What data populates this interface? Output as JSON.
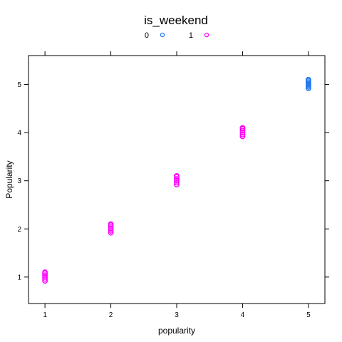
{
  "chart_data": {
    "type": "scatter",
    "xlabel": "popularity",
    "ylabel": "Popularity",
    "xlim": [
      0.75,
      5.25
    ],
    "ylim": [
      0.45,
      5.6
    ],
    "x_ticks": [
      1,
      2,
      3,
      4,
      5
    ],
    "y_ticks": [
      1,
      2,
      3,
      4,
      5
    ],
    "legend": {
      "title": "is_weekend",
      "position": "top",
      "entries": [
        {
          "label": "0",
          "color": "#1f78f0"
        },
        {
          "label": "1",
          "color": "#ff00ff"
        }
      ]
    },
    "series": [
      {
        "name": "0",
        "color": "#1f78f0",
        "points": [
          {
            "x": 5,
            "y": 4.92
          },
          {
            "x": 5,
            "y": 4.95
          },
          {
            "x": 5,
            "y": 4.98
          },
          {
            "x": 5,
            "y": 5.0
          },
          {
            "x": 5,
            "y": 5.02
          },
          {
            "x": 5,
            "y": 5.05
          },
          {
            "x": 5,
            "y": 5.08
          },
          {
            "x": 5,
            "y": 5.1
          }
        ]
      },
      {
        "name": "1",
        "color": "#ff00ff",
        "points": [
          {
            "x": 1,
            "y": 0.92
          },
          {
            "x": 1,
            "y": 0.96
          },
          {
            "x": 1,
            "y": 1.0
          },
          {
            "x": 1,
            "y": 1.04
          },
          {
            "x": 1,
            "y": 1.08
          },
          {
            "x": 1,
            "y": 1.1
          },
          {
            "x": 2,
            "y": 1.92
          },
          {
            "x": 2,
            "y": 1.96
          },
          {
            "x": 2,
            "y": 2.0
          },
          {
            "x": 2,
            "y": 2.04
          },
          {
            "x": 2,
            "y": 2.08
          },
          {
            "x": 2,
            "y": 2.1
          },
          {
            "x": 3,
            "y": 2.92
          },
          {
            "x": 3,
            "y": 2.96
          },
          {
            "x": 3,
            "y": 3.0
          },
          {
            "x": 3,
            "y": 3.04
          },
          {
            "x": 3,
            "y": 3.08
          },
          {
            "x": 3,
            "y": 3.1
          },
          {
            "x": 4,
            "y": 3.92
          },
          {
            "x": 4,
            "y": 3.96
          },
          {
            "x": 4,
            "y": 4.0
          },
          {
            "x": 4,
            "y": 4.04
          },
          {
            "x": 4,
            "y": 4.08
          },
          {
            "x": 4,
            "y": 4.1
          }
        ]
      }
    ]
  }
}
